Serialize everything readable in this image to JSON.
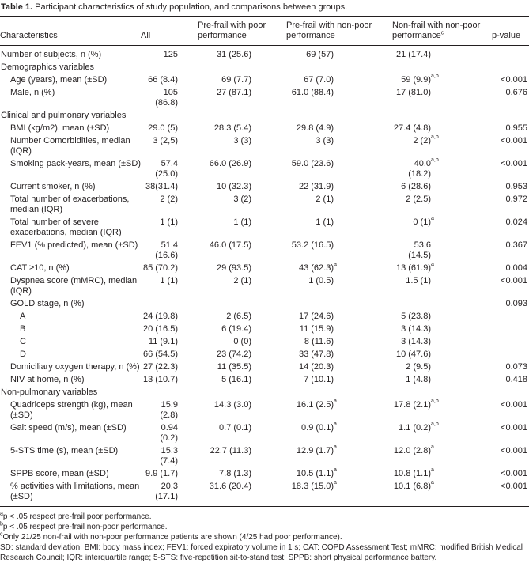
{
  "table": {
    "label": "Table 1.",
    "caption": "Participant characteristics of study population, and comparisons between groups.",
    "columns": [
      "Characteristics",
      "All",
      "Pre-frail with poor performance",
      "Pre-frail with non-poor performance",
      {
        "text": "Non-frail with non-poor performance",
        "sup": "c"
      },
      "p-value"
    ],
    "sections": [
      {
        "rows": [
          {
            "label": "Number of subjects, n (%)",
            "cells": [
              "125",
              "31 (25.6)",
              "69 (57)",
              "21 (17.4)",
              null
            ]
          }
        ]
      },
      {
        "title": "Demographics variables",
        "rows": [
          {
            "label": "Age (years), mean (±SD)",
            "cells": [
              "66 (8.4)",
              "69 (7.7)",
              "67 (7.0)",
              {
                "text": "59 (9.9)",
                "sup": "a,b"
              },
              "<0.001"
            ]
          },
          {
            "label": "Male, n (%)",
            "cells": [
              "105 (86.8)",
              "27 (87.1)",
              "61.0 (88.4)",
              "17 (81.0)",
              "0.676"
            ]
          }
        ]
      },
      {
        "title": "Clinical and pulmonary variables",
        "rows": [
          {
            "label": "BMI (kg/m2), mean (±SD)",
            "cells": [
              "29.0 (5)",
              "28.3 (5.4)",
              "29.8 (4.9)",
              "27.4 (4.8)",
              "0.955"
            ]
          },
          {
            "label": "Number Comorbidities, median (IQR)",
            "cells": [
              "3 (2,5)",
              "3 (3)",
              "3 (3)",
              {
                "text": "2 (2)",
                "sup": "a,b"
              },
              "<0.001"
            ]
          },
          {
            "label": "Smoking pack-years, mean (±SD)",
            "cells": [
              "57.4 (25.0)",
              "66.0 (26.9)",
              "59.0 (23.6)",
              {
                "text": "40.0 (18.2)",
                "sup": "a,b"
              },
              "<0.001"
            ]
          },
          {
            "label": "Current smoker, n (%)",
            "cells": [
              "38(31.4)",
              "10 (32.3)",
              "22 (31.9)",
              "6 (28.6)",
              "0.953"
            ]
          },
          {
            "label": "Total number of exacerbations, median (IQR)",
            "cells": [
              "2 (2)",
              "3 (2)",
              "2 (1)",
              "2 (2.5)",
              "0.972"
            ]
          },
          {
            "label": "Total number of severe exacerbations, median (IQR)",
            "cells": [
              "1 (1)",
              "1 (1)",
              "1 (1)",
              {
                "text": "0 (1)",
                "sup": "a"
              },
              "0.024"
            ]
          },
          {
            "label": "FEV1 (% predicted), mean (±SD)",
            "cells": [
              "51.4 (16.6)",
              "46.0 (17.5)",
              "53.2 (16.5)",
              "53.6 (14.5)",
              "0.367"
            ]
          },
          {
            "label": "CAT ≥10, n (%)",
            "cells": [
              "85 (70.2)",
              "29 (93.5)",
              {
                "text": "43 (62.3)",
                "sup": "a"
              },
              {
                "text": "13 (61.9)",
                "sup": "a"
              },
              "0.004"
            ]
          },
          {
            "label": "Dyspnea score (mMRC), median (IQR)",
            "cells": [
              "1 (1)",
              "2 (1)",
              "1 (0.5)",
              "1.5 (1)",
              "<0.001"
            ]
          },
          {
            "label": "GOLD stage, n (%)",
            "cells": [
              null,
              null,
              null,
              null,
              "0.093"
            ],
            "subrows": [
              {
                "label": "A",
                "cells": [
                  "24 (19.8)",
                  "2 (6.5)",
                  "17 (24.6)",
                  "5 (23.8)",
                  null
                ]
              },
              {
                "label": "B",
                "cells": [
                  "20 (16.5)",
                  "6 (19.4)",
                  "11 (15.9)",
                  "3 (14.3)",
                  null
                ]
              },
              {
                "label": "C",
                "cells": [
                  "11 (9.1)",
                  "0 (0)",
                  "8 (11.6)",
                  "3 (14.3)",
                  null
                ]
              },
              {
                "label": "D",
                "cells": [
                  "66 (54.5)",
                  "23 (74.2)",
                  "33 (47.8)",
                  "10 (47.6)",
                  null
                ]
              }
            ]
          },
          {
            "label": "Domiciliary oxygen therapy, n (%)",
            "cells": [
              "27 (22.3)",
              "11 (35.5)",
              "14 (20.3)",
              "2 (9.5)",
              "0.073"
            ]
          },
          {
            "label": "NIV at home, n (%)",
            "cells": [
              "13 (10.7)",
              "5 (16.1)",
              "7 (10.1)",
              "1 (4.8)",
              "0.418"
            ]
          }
        ]
      },
      {
        "title": "Non-pulmonary variables",
        "rows": [
          {
            "label": "Quadriceps strength (kg), mean (±SD)",
            "cells": [
              "15.9 (2.8)",
              "14.3 (3.0)",
              {
                "text": "16.1 (2.5)",
                "sup": "a"
              },
              {
                "text": "17.8 (2.1)",
                "sup": "a,b"
              },
              "<0.001"
            ]
          },
          {
            "label": "Gait speed (m/s), mean (±SD)",
            "cells": [
              "0.94 (0.2)",
              "0.7 (0.1)",
              {
                "text": "0.9 (0.1)",
                "sup": "a"
              },
              {
                "text": "1.1 (0.2)",
                "sup": "a,b"
              },
              "<0.001"
            ]
          },
          {
            "label": "5-STS time (s), mean (±SD)",
            "cells": [
              "15.3 (7.4)",
              "22.7 (11.3)",
              {
                "text": "12.9 (1.7)",
                "sup": "a"
              },
              {
                "text": "12.0 (2.8)",
                "sup": "a"
              },
              "<0.001"
            ]
          },
          {
            "label": "SPPB score, mean (±SD)",
            "cells": [
              "9.9 (1.7)",
              "7.8 (1.3)",
              {
                "text": "10.5 (1.1)",
                "sup": "a"
              },
              {
                "text": "10.8 (1.1)",
                "sup": "a"
              },
              "<0.001"
            ]
          },
          {
            "label": "% activities with limitations, mean (±SD)",
            "cells": [
              "20.3 (17.1)",
              "31.6 (20.4)",
              {
                "text": "18.3 (15.0)",
                "sup": "a"
              },
              {
                "text": "10.1 (6.8)",
                "sup": "a"
              },
              "<0.001"
            ]
          }
        ]
      }
    ],
    "footnotes": [
      {
        "mark": "a",
        "text": "p < .05 respect pre-frail poor performance."
      },
      {
        "mark": "b",
        "text": "p < .05 respect pre-frail non-poor performance."
      },
      {
        "mark": "c",
        "text": "Only 21/25 non-frail with non-poor performance patients are shown (4/25 had poor performance)."
      }
    ],
    "abbreviations": "SD: standard deviation; BMI: body mass index; FEV1: forced expiratory volume in 1 s; CAT: COPD Assessment Test; mMRC: modified British Medical Research Council; IQR: interquartile range; 5-STS: five-repetition sit-to-stand test; SPPB: short physical performance battery."
  }
}
